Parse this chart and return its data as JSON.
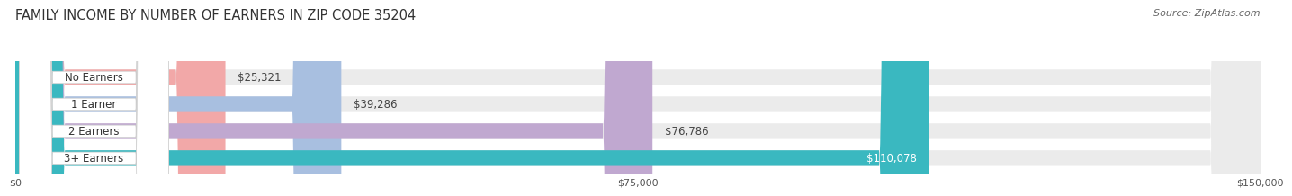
{
  "title": "FAMILY INCOME BY NUMBER OF EARNERS IN ZIP CODE 35204",
  "source": "Source: ZipAtlas.com",
  "categories": [
    "No Earners",
    "1 Earner",
    "2 Earners",
    "3+ Earners"
  ],
  "values": [
    25321,
    39286,
    76786,
    110078
  ],
  "value_labels": [
    "$25,321",
    "$39,286",
    "$76,786",
    "$110,078"
  ],
  "bar_colors": [
    "#f2a8a8",
    "#a8bfe0",
    "#c0a8d0",
    "#3ab8c0"
  ],
  "bar_bg_color": "#ebebeb",
  "xmax": 150000,
  "xticks": [
    0,
    75000,
    150000
  ],
  "xticklabels": [
    "$0",
    "$75,000",
    "$150,000"
  ],
  "title_fontsize": 10.5,
  "source_fontsize": 8,
  "bar_label_fontsize": 8.5,
  "value_label_fontsize": 8.5,
  "background_color": "#ffffff",
  "bar_height": 0.58
}
